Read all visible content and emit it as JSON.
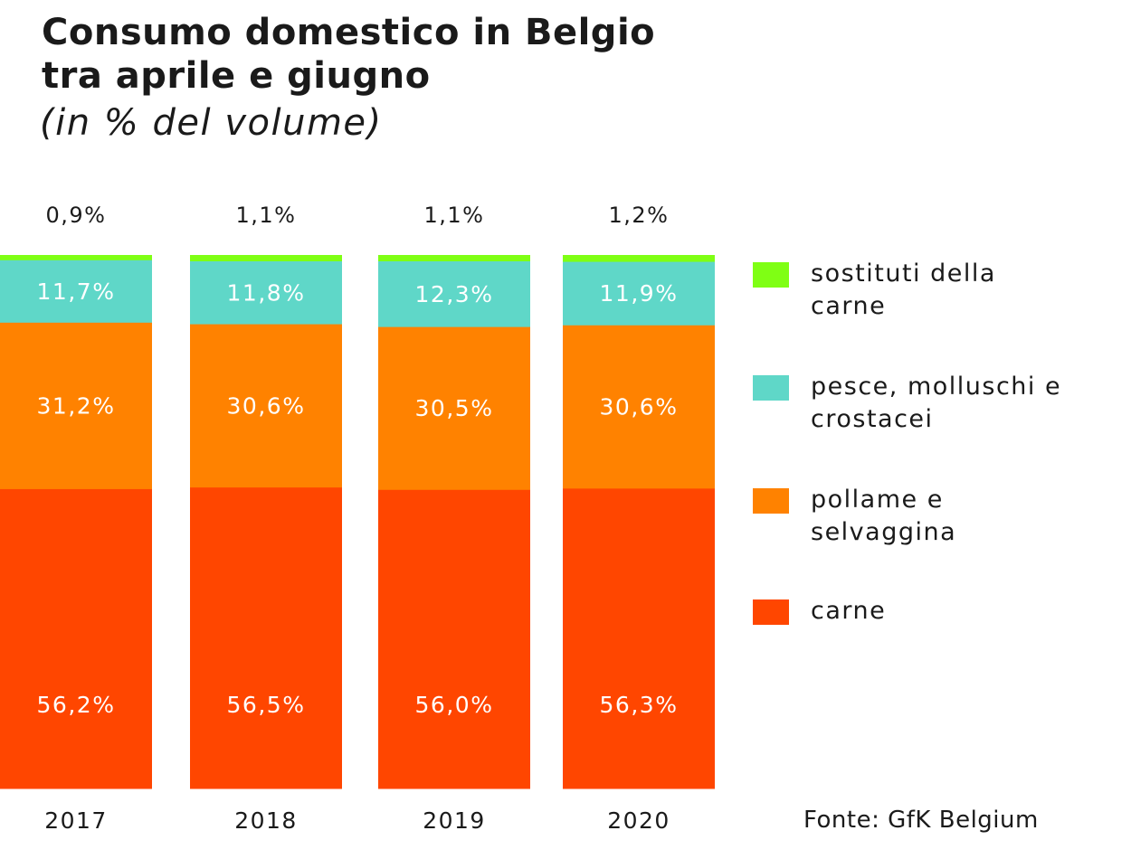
{
  "chart_data": {
    "type": "bar",
    "stacked": true,
    "title_line1": "Consumo domestico in Belgio",
    "title_line2": "tra aprile e giugno",
    "subtitle": "(in % del volume)",
    "categories": [
      "2017",
      "2018",
      "2019",
      "2020"
    ],
    "series": [
      {
        "name": "carne",
        "color": "#ff4600",
        "values": [
          56.2,
          56.5,
          56.0,
          56.3
        ],
        "labels": [
          "56,2%",
          "56,5%",
          "56,0%",
          "56,3%"
        ]
      },
      {
        "name": "pollame e selvaggina",
        "color": "#ff8200",
        "values": [
          31.2,
          30.6,
          30.5,
          30.6
        ],
        "labels": [
          "31,2%",
          "30,6%",
          "30,5%",
          "30,6%"
        ]
      },
      {
        "name": "pesce, molluschi e crostacei",
        "color": "#5fd7c8",
        "values": [
          11.7,
          11.8,
          12.3,
          11.9
        ],
        "labels": [
          "11,7%",
          "11,8%",
          "12,3%",
          "11,9%"
        ]
      },
      {
        "name": "sostituti della carne",
        "color": "#7fff14",
        "values": [
          0.9,
          1.1,
          1.1,
          1.2
        ],
        "labels": [
          "0,9%",
          "1,1%",
          "1,1%",
          "1,2%"
        ]
      }
    ],
    "legend_order": [
      3,
      2,
      1,
      0
    ],
    "legend_position": "right",
    "legend_labels": [
      "sostituti della\ncarne",
      "pesce, molluschi e\ncrostacei",
      "pollame e\nselvaggina",
      "carne"
    ],
    "ylim": [
      0,
      100
    ],
    "grid": false,
    "source": "Fonte: GfK Belgium"
  }
}
